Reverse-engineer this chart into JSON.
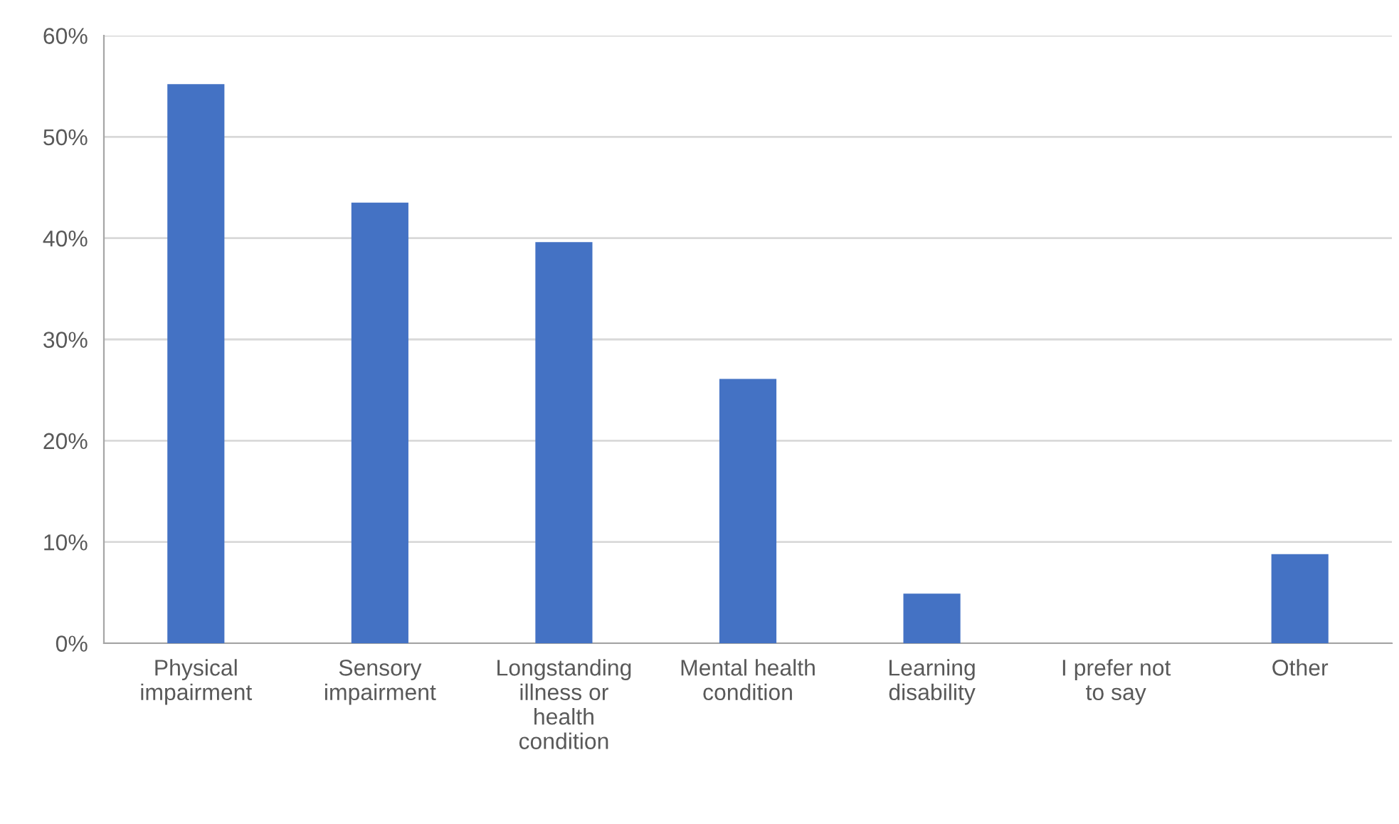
{
  "chart_data": {
    "type": "bar",
    "categories": [
      "Physical impairment",
      "Sensory impairment",
      "Longstanding illness or health condition",
      "Mental health condition",
      "Learning disability",
      "I prefer not to say",
      "Other"
    ],
    "values": [
      55.2,
      43.5,
      39.6,
      26.1,
      4.9,
      0,
      8.8
    ],
    "color": "#4472c4",
    "ylim": [
      0,
      60
    ],
    "yticks": [
      {
        "value": 0,
        "label": "0%"
      },
      {
        "value": 10,
        "label": "10%"
      },
      {
        "value": 20,
        "label": "20%"
      },
      {
        "value": 30,
        "label": "30%"
      },
      {
        "value": 40,
        "label": "40%"
      },
      {
        "value": 50,
        "label": "50%"
      },
      {
        "value": 60,
        "label": "60%"
      }
    ],
    "grid": "y",
    "legend": false
  }
}
